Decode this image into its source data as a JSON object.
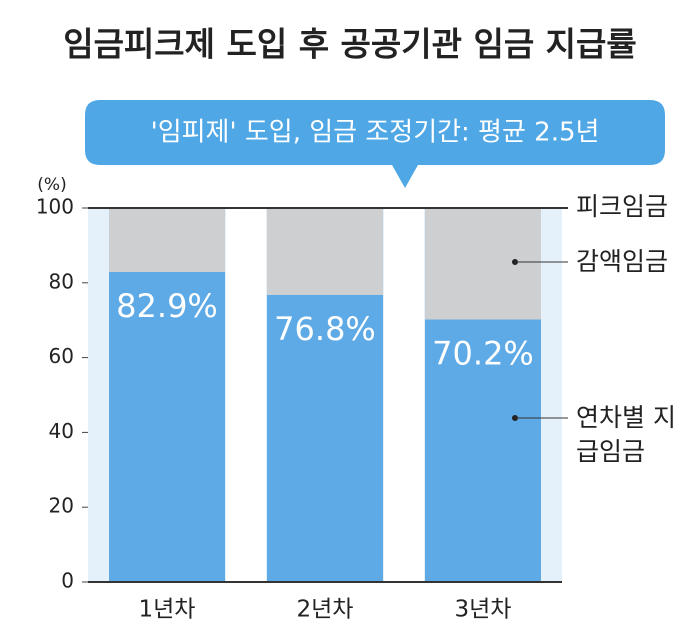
{
  "chart_data": {
    "type": "stacked_bar",
    "title": "임금피크제 도입 후 공공기관 임금 지급률",
    "subtitle": "'임피제' 도입, 임금 조정기간: 평균 2.5년",
    "y_label": "(%)",
    "annotation": "피크임금",
    "categories": [
      "1년차",
      "2년차",
      "3년차"
    ],
    "series": [
      {
        "name": "연차별 지급임금",
        "color": "#5eaae6",
        "values": [
          82.9,
          76.8,
          70.2
        ],
        "value_labels": [
          "82.9%",
          "76.8%",
          "70.2%"
        ]
      },
      {
        "name": "감액임금",
        "color": "#cdcfd0",
        "values": [
          17.1,
          23.2,
          29.8
        ]
      }
    ],
    "ylim": [
      0,
      100
    ],
    "yticks": [
      0,
      20,
      40,
      60,
      80,
      100
    ]
  }
}
